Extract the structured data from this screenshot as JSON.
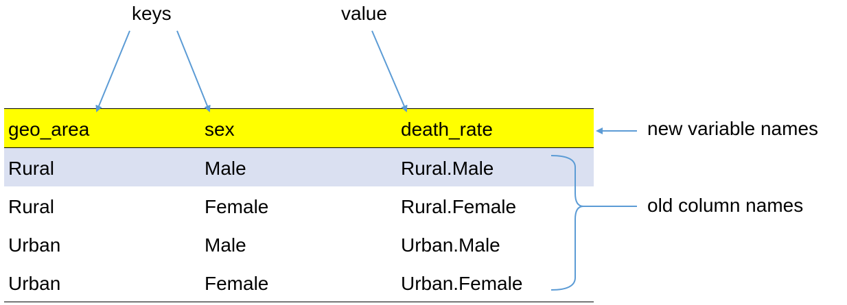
{
  "annotations": {
    "keys": "keys",
    "value": "value",
    "new_variable_names": "new variable names",
    "old_column_names": "old column names"
  },
  "table": {
    "headers": [
      "geo_area",
      "sex",
      "death_rate"
    ],
    "rows": [
      [
        "Rural",
        "Male",
        "Rural.Male"
      ],
      [
        "Rural",
        "Female",
        "Rural.Female"
      ],
      [
        "Urban",
        "Male",
        "Urban.Male"
      ],
      [
        "Urban",
        "Female",
        "Urban.Female"
      ]
    ]
  },
  "colors": {
    "header_bg": "#ffff00",
    "highlight_row_bg": "#dae0f1",
    "arrow": "#5b9bd5"
  }
}
